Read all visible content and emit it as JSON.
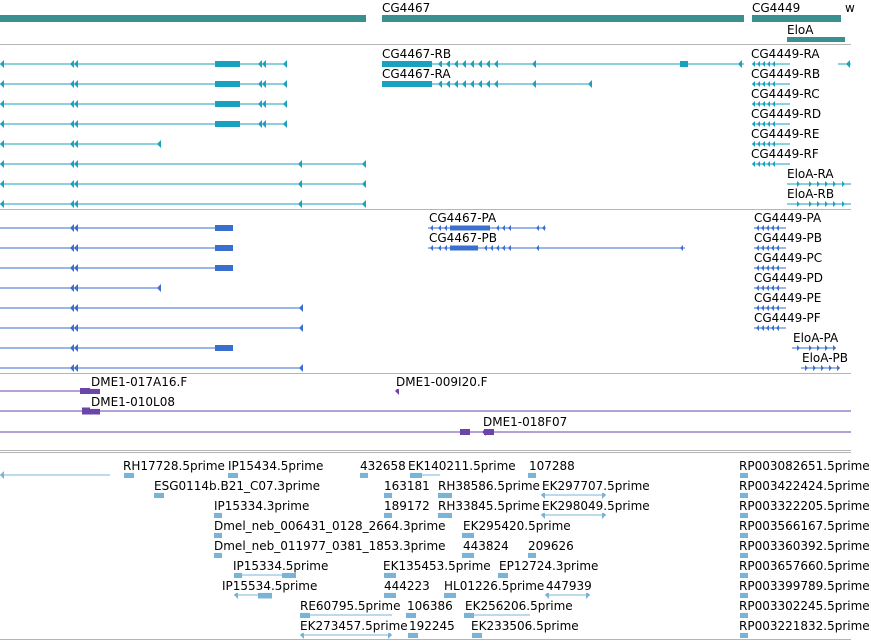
{
  "colors": {
    "gene": "#3a8f8f",
    "transcript": "#18a2c0",
    "protein": "#3a6fcf",
    "clone": "#6b45a8",
    "cdna": "#78b4d8",
    "divider": "#b5b5b5"
  },
  "gene_track": {
    "features": [
      {
        "label": "CG4467"
      },
      {
        "label": "CG4449"
      },
      {
        "label": "w"
      },
      {
        "label": "EloA"
      }
    ]
  },
  "transcript_track": {
    "labels": [
      "CG4467-RB",
      "CG4467-RA",
      "CG4449-RA",
      "CG4449-RB",
      "CG4449-RC",
      "CG4449-RD",
      "CG4449-RE",
      "CG4449-RF",
      "EloA-RA",
      "EloA-RB"
    ]
  },
  "protein_track": {
    "labels": [
      "CG4467-PA",
      "CG4467-PB",
      "CG4449-PA",
      "CG4449-PB",
      "CG4449-PC",
      "CG4449-PD",
      "CG4449-PE",
      "CG4449-PF",
      "EloA-PA",
      "EloA-PB"
    ]
  },
  "clone_track": {
    "labels": [
      "DME1-017A16.F",
      "DME1-009I20.F",
      "DME1-010L08",
      "DME1-018F07"
    ]
  },
  "cdna_track": {
    "labels": [
      "RH17728.5prime",
      "IP15434.5prime",
      "432658",
      "EK140211.5prime",
      "107288",
      "RP003082651.5prime",
      "ESG0114b.B21_C07.3prime",
      "163181",
      "RH38586.5prime",
      "EK297707.5prime",
      "RP003422424.5prime",
      "IP15334.3prime",
      "189172",
      "RH33845.5prime",
      "EK298049.5prime",
      "RP003322205.5prime",
      "Dmel_neb_006431_0128_2664.3prime",
      "EK295420.5prime",
      "RP003566167.5prime",
      "Dmel_neb_011977_0381_1853.3prime",
      "443824",
      "209626",
      "RP003360392.5prime",
      "IP15334.5prime",
      "EK135453.5prime",
      "EP12724.3prime",
      "RP003657660.5prime",
      "IP15534.5prime",
      "444223",
      "HL01226.5prime",
      "447939",
      "RP003399789.5prime",
      "RE60795.5prime",
      "106386",
      "EK256206.5prime",
      "RP003302245.5prime",
      "EK273457.5prime",
      "192245",
      "EK233506.5prime",
      "RP003221832.5prime"
    ]
  }
}
